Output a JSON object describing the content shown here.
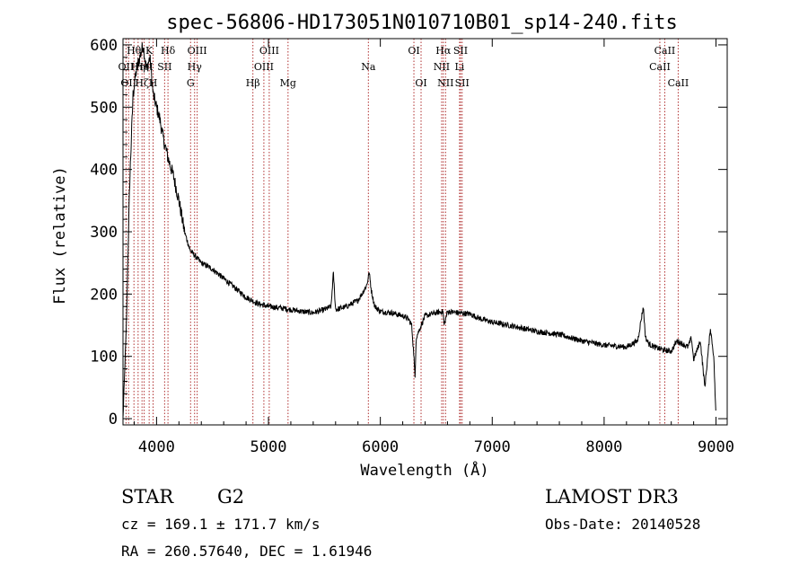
{
  "chart_data": {
    "type": "line",
    "title": "spec-56806-HD173051N010710B01_sp14-240.fits",
    "xlabel": "Wavelength (Å)",
    "ylabel": "Flux (relative)",
    "xlim": [
      3700,
      9100
    ],
    "ylim": [
      -10,
      610
    ],
    "xticks": [
      4000,
      5000,
      6000,
      7000,
      8000,
      9000
    ],
    "yticks": [
      0,
      100,
      200,
      300,
      400,
      500,
      600
    ],
    "spectrum_anchors": {
      "wavelength": [
        3700,
        3730,
        3760,
        3790,
        3820,
        3850,
        3880,
        3910,
        3940,
        3970,
        4000,
        4030,
        4060,
        4100,
        4150,
        4200,
        4250,
        4300,
        4350,
        4400,
        4500,
        4600,
        4700,
        4800,
        4900,
        5000,
        5100,
        5200,
        5300,
        5400,
        5500,
        5560,
        5580,
        5600,
        5700,
        5800,
        5850,
        5880,
        5900,
        5920,
        5950,
        6000,
        6100,
        6200,
        6250,
        6280,
        6300,
        6310,
        6320,
        6400,
        6500,
        6560,
        6570,
        6600,
        6700,
        6800,
        6900,
        7000,
        7200,
        7400,
        7600,
        7800,
        8000,
        8200,
        8300,
        8350,
        8370,
        8400,
        8450,
        8500,
        8540,
        8600,
        8650,
        8700,
        8750,
        8780,
        8800,
        8830,
        8860,
        8900,
        8950,
        8980,
        9000
      ],
      "flux": [
        0,
        150,
        380,
        520,
        560,
        580,
        600,
        560,
        580,
        520,
        500,
        480,
        450,
        420,
        390,
        350,
        300,
        270,
        260,
        250,
        240,
        225,
        210,
        195,
        185,
        180,
        178,
        175,
        172,
        170,
        175,
        180,
        235,
        175,
        180,
        190,
        205,
        215,
        235,
        205,
        180,
        172,
        170,
        165,
        160,
        150,
        100,
        65,
        130,
        165,
        170,
        172,
        150,
        172,
        170,
        168,
        160,
        155,
        148,
        140,
        135,
        125,
        118,
        115,
        125,
        180,
        130,
        120,
        115,
        112,
        110,
        108,
        125,
        120,
        115,
        130,
        95,
        110,
        125,
        50,
        145,
        100,
        0
      ]
    },
    "spectral_lines": [
      {
        "wavelength": 3727,
        "label": "OII",
        "row": 2
      },
      {
        "wavelength": 3750,
        "label": "OII",
        "row": 3
      },
      {
        "wavelength": 3798,
        "label": "Hθ",
        "row": 1
      },
      {
        "wavelength": 3835,
        "label": "Hη",
        "row": 2
      },
      {
        "wavelength": 3870,
        "label": "Hζ",
        "row": 3
      },
      {
        "wavelength": 3889,
        "label": "HeI",
        "row": 2
      },
      {
        "wavelength": 3934,
        "label": "K",
        "row": 1
      },
      {
        "wavelength": 3969,
        "label": "H",
        "row": 3
      },
      {
        "wavelength": 4072,
        "label": "SII",
        "row": 2
      },
      {
        "wavelength": 4102,
        "label": "Hδ",
        "row": 1
      },
      {
        "wavelength": 4304,
        "label": "G",
        "row": 3
      },
      {
        "wavelength": 4340,
        "label": "Hγ",
        "row": 2
      },
      {
        "wavelength": 4363,
        "label": "OIII",
        "row": 1
      },
      {
        "wavelength": 4861,
        "label": "Hβ",
        "row": 3
      },
      {
        "wavelength": 4959,
        "label": "OIII",
        "row": 2
      },
      {
        "wavelength": 5007,
        "label": "OIII",
        "row": 1
      },
      {
        "wavelength": 5175,
        "label": "Mg",
        "row": 3
      },
      {
        "wavelength": 5893,
        "label": "Na",
        "row": 2
      },
      {
        "wavelength": 6300,
        "label": "OI",
        "row": 1
      },
      {
        "wavelength": 6364,
        "label": "OI",
        "row": 3
      },
      {
        "wavelength": 6548,
        "label": "NII",
        "row": 2
      },
      {
        "wavelength": 6563,
        "label": "Hα",
        "row": 1
      },
      {
        "wavelength": 6583,
        "label": "NII",
        "row": 3
      },
      {
        "wavelength": 6708,
        "label": "Li",
        "row": 2
      },
      {
        "wavelength": 6717,
        "label": "SII",
        "row": 1
      },
      {
        "wavelength": 6731,
        "label": "SII",
        "row": 3
      },
      {
        "wavelength": 8498,
        "label": "CaII",
        "row": 2
      },
      {
        "wavelength": 8542,
        "label": "CaII",
        "row": 1
      },
      {
        "wavelength": 8662,
        "label": "CaII",
        "row": 3
      }
    ],
    "grid": false,
    "line_color": "#000000",
    "marker_color": "#b03030"
  },
  "info": {
    "object_class": "STAR",
    "subclass": "G2",
    "survey": "LAMOST DR3",
    "redshift_line": "cz = 169.1 ± 171.7 km/s",
    "obs_date_line": "Obs-Date: 20140528",
    "coord_line": "RA = 260.57640, DEC =   1.61946"
  }
}
